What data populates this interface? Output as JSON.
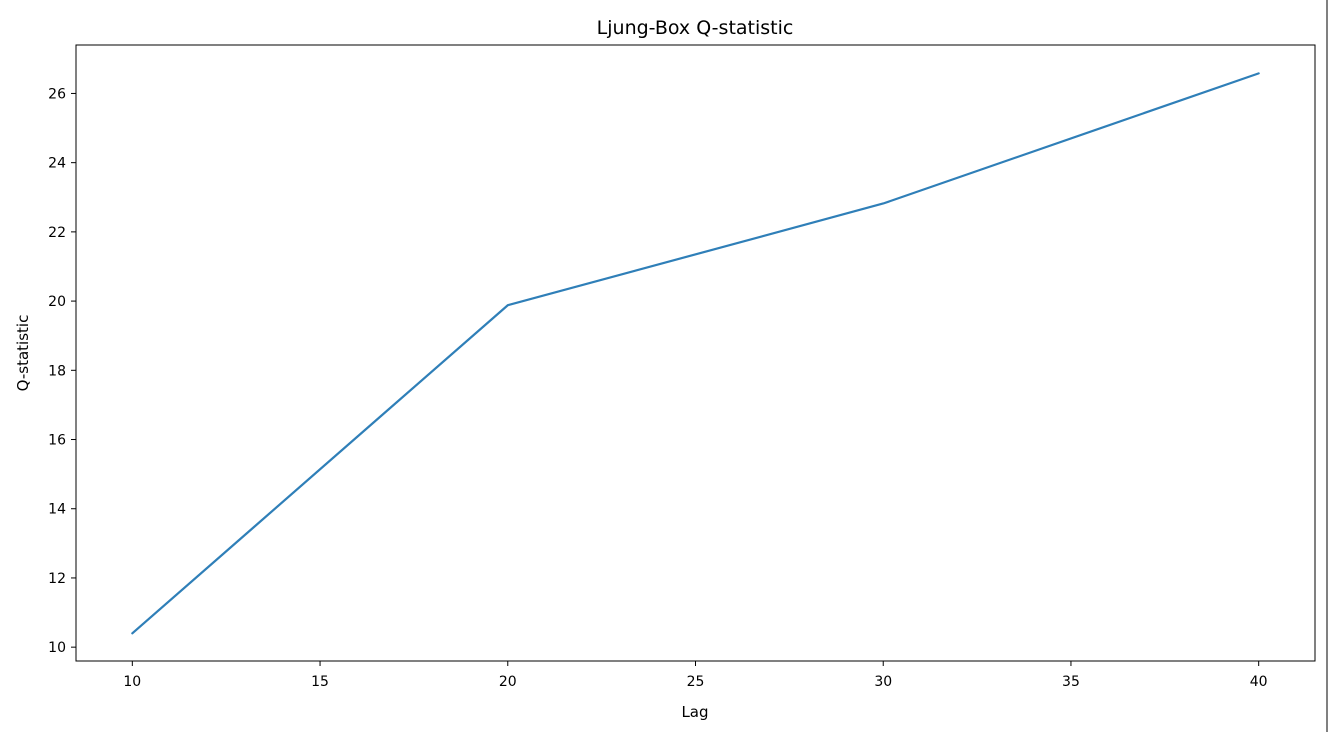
{
  "chart_data": {
    "type": "line",
    "title": "Ljung-Box Q-statistic",
    "xlabel": "Lag",
    "ylabel": "Q-statistic",
    "x": [
      10,
      20,
      30,
      40
    ],
    "series": [
      {
        "values": [
          10.4,
          19.88,
          22.82,
          26.58
        ],
        "color": "#2f7fb8"
      }
    ],
    "xlim": [
      8.5,
      41.5
    ],
    "ylim": [
      9.6,
      27.4
    ],
    "xticks": [
      10,
      15,
      20,
      25,
      30,
      35,
      40
    ],
    "yticks": [
      10,
      12,
      14,
      16,
      18,
      20,
      22,
      24,
      26
    ],
    "grid": false,
    "legend": "none"
  }
}
